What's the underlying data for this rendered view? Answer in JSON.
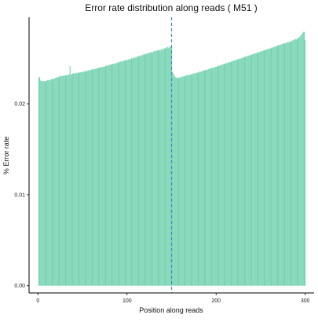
{
  "chart_data": {
    "type": "bar",
    "title": "Error rate distribution along reads ( M51 )",
    "xlabel": "Position along reads",
    "ylabel": "% Error rate",
    "xlim": [
      -10,
      310
    ],
    "ylim": [
      -0.0008,
      0.0295
    ],
    "x_ticks": [
      0,
      100,
      200,
      300
    ],
    "x_tick_labels": [
      "0",
      "100",
      "200",
      "300"
    ],
    "y_ticks": [
      0,
      0.01,
      0.02
    ],
    "y_tick_labels": [
      "0.00",
      "0.01",
      "0.02"
    ],
    "bar_color": "#6ccfab",
    "bar_edge_color": "#c7eee0",
    "vline": {
      "x": 150,
      "color": "#4a8cc4",
      "style": "dashed"
    },
    "grid": false,
    "series": [
      {
        "x_start": 1,
        "x_end": 300,
        "values": [
          0.02285,
          0.02295,
          0.02255,
          0.0225,
          0.02245,
          0.02252,
          0.0225,
          0.02245,
          0.0225,
          0.02255,
          0.0226,
          0.0226,
          0.02255,
          0.02265,
          0.0227,
          0.02272,
          0.0227,
          0.02275,
          0.0228,
          0.02285,
          0.0229,
          0.02295,
          0.0229,
          0.023,
          0.02305,
          0.023,
          0.02305,
          0.0231,
          0.02305,
          0.0231,
          0.02315,
          0.0231,
          0.02315,
          0.0232,
          0.02325,
          0.02415,
          0.0232,
          0.02325,
          0.0233,
          0.02335,
          0.0233,
          0.02335,
          0.0234,
          0.02335,
          0.0234,
          0.02345,
          0.0234,
          0.02345,
          0.0235,
          0.02345,
          0.0235,
          0.02355,
          0.0236,
          0.02355,
          0.0236,
          0.02365,
          0.0237,
          0.02365,
          0.0237,
          0.02375,
          0.0238,
          0.02375,
          0.0238,
          0.02385,
          0.0238,
          0.0239,
          0.02395,
          0.0239,
          0.02395,
          0.024,
          0.02405,
          0.024,
          0.02405,
          0.0241,
          0.02405,
          0.02415,
          0.0242,
          0.02415,
          0.0242,
          0.0243,
          0.02425,
          0.0243,
          0.02435,
          0.0244,
          0.02435,
          0.0244,
          0.02445,
          0.0245,
          0.02445,
          0.02455,
          0.0246,
          0.02455,
          0.02465,
          0.0247,
          0.02465,
          0.0247,
          0.02475,
          0.0248,
          0.02475,
          0.0248,
          0.02485,
          0.0249,
          0.02485,
          0.0249,
          0.025,
          0.02495,
          0.025,
          0.0251,
          0.02505,
          0.02515,
          0.0251,
          0.0252,
          0.02525,
          0.0252,
          0.02525,
          0.02535,
          0.0253,
          0.0254,
          0.02545,
          0.0254,
          0.0255,
          0.02545,
          0.02555,
          0.0256,
          0.02555,
          0.02565,
          0.0257,
          0.0256,
          0.0257,
          0.02575,
          0.0258,
          0.02575,
          0.02585,
          0.0259,
          0.0258,
          0.0259,
          0.02595,
          0.02585,
          0.026,
          0.02605,
          0.02595,
          0.0261,
          0.02615,
          0.02605,
          0.0262,
          0.02625,
          0.0261,
          0.02625,
          0.0263,
          0.0262,
          0.0235,
          0.0233,
          0.0231,
          0.02295,
          0.02285,
          0.0229,
          0.0228,
          0.02285,
          0.0229,
          0.02285,
          0.02295,
          0.023,
          0.02295,
          0.02305,
          0.023,
          0.0231,
          0.02315,
          0.0231,
          0.0232,
          0.02315,
          0.0232,
          0.02325,
          0.0232,
          0.0233,
          0.02335,
          0.0233,
          0.0234,
          0.02335,
          0.02345,
          0.0234,
          0.0235,
          0.02355,
          0.0235,
          0.0236,
          0.02355,
          0.02365,
          0.0237,
          0.02365,
          0.02375,
          0.0237,
          0.0238,
          0.02385,
          0.0238,
          0.0239,
          0.02395,
          0.0239,
          0.024,
          0.02395,
          0.02405,
          0.0241,
          0.02405,
          0.02415,
          0.0242,
          0.02415,
          0.02425,
          0.0243,
          0.02425,
          0.02435,
          0.0244,
          0.02435,
          0.02445,
          0.0245,
          0.02445,
          0.02455,
          0.0246,
          0.02455,
          0.02465,
          0.0247,
          0.02465,
          0.02475,
          0.0248,
          0.02475,
          0.02485,
          0.0249,
          0.02485,
          0.02495,
          0.025,
          0.02495,
          0.02505,
          0.0251,
          0.02505,
          0.02515,
          0.0252,
          0.02515,
          0.02525,
          0.0253,
          0.02525,
          0.02535,
          0.0254,
          0.02535,
          0.02545,
          0.0255,
          0.02545,
          0.02555,
          0.0256,
          0.02555,
          0.02565,
          0.0257,
          0.02565,
          0.02575,
          0.0258,
          0.02575,
          0.02585,
          0.0259,
          0.02585,
          0.02595,
          0.026,
          0.02595,
          0.02605,
          0.0261,
          0.02605,
          0.02615,
          0.0262,
          0.02615,
          0.02625,
          0.0263,
          0.02625,
          0.02635,
          0.0264,
          0.0264,
          0.02645,
          0.0265,
          0.0265,
          0.02655,
          0.0266,
          0.02665,
          0.0266,
          0.02665,
          0.0267,
          0.02675,
          0.0268,
          0.02675,
          0.02685,
          0.0268,
          0.0269,
          0.02695,
          0.027,
          0.02705,
          0.0271,
          0.02705,
          0.02715,
          0.0272,
          0.0273,
          0.02735,
          0.0275,
          0.0276,
          0.02775,
          0.0279,
          0.0279,
          0.027
        ]
      }
    ]
  }
}
